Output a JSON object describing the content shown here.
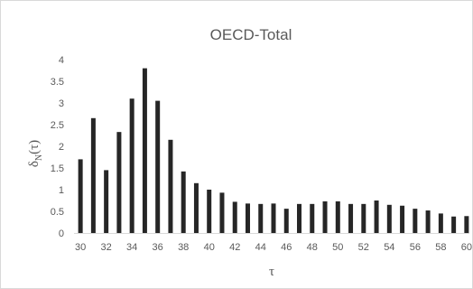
{
  "chart_data": {
    "type": "bar",
    "title": "OECD-Total",
    "xlabel": "τ",
    "ylabel": {
      "main": "δ",
      "sub": "N",
      "rest": "(τ)"
    },
    "x": [
      30,
      31,
      32,
      33,
      34,
      35,
      36,
      37,
      38,
      39,
      40,
      41,
      42,
      43,
      44,
      45,
      46,
      47,
      48,
      49,
      50,
      51,
      52,
      53,
      54,
      55,
      56,
      57,
      58,
      59,
      60
    ],
    "values": [
      1.7,
      2.65,
      1.45,
      2.33,
      3.1,
      3.8,
      3.05,
      2.15,
      1.42,
      1.15,
      1.0,
      0.93,
      0.72,
      0.68,
      0.67,
      0.68,
      0.56,
      0.67,
      0.67,
      0.73,
      0.73,
      0.67,
      0.67,
      0.75,
      0.65,
      0.63,
      0.56,
      0.52,
      0.45,
      0.38,
      0.39
    ],
    "x_tick_labels": [
      "30",
      "32",
      "34",
      "36",
      "38",
      "40",
      "42",
      "44",
      "46",
      "48",
      "50",
      "52",
      "54",
      "56",
      "58",
      "60"
    ],
    "y_tick_labels": [
      "0",
      "0.5",
      "1",
      "1.5",
      "2",
      "2.5",
      "3",
      "3.5",
      "4"
    ],
    "ylim": [
      0,
      4
    ],
    "grid": false,
    "legend": "none",
    "colors": {
      "bar": "#262626",
      "text": "#595959",
      "axis": "#d9d9d9"
    }
  }
}
